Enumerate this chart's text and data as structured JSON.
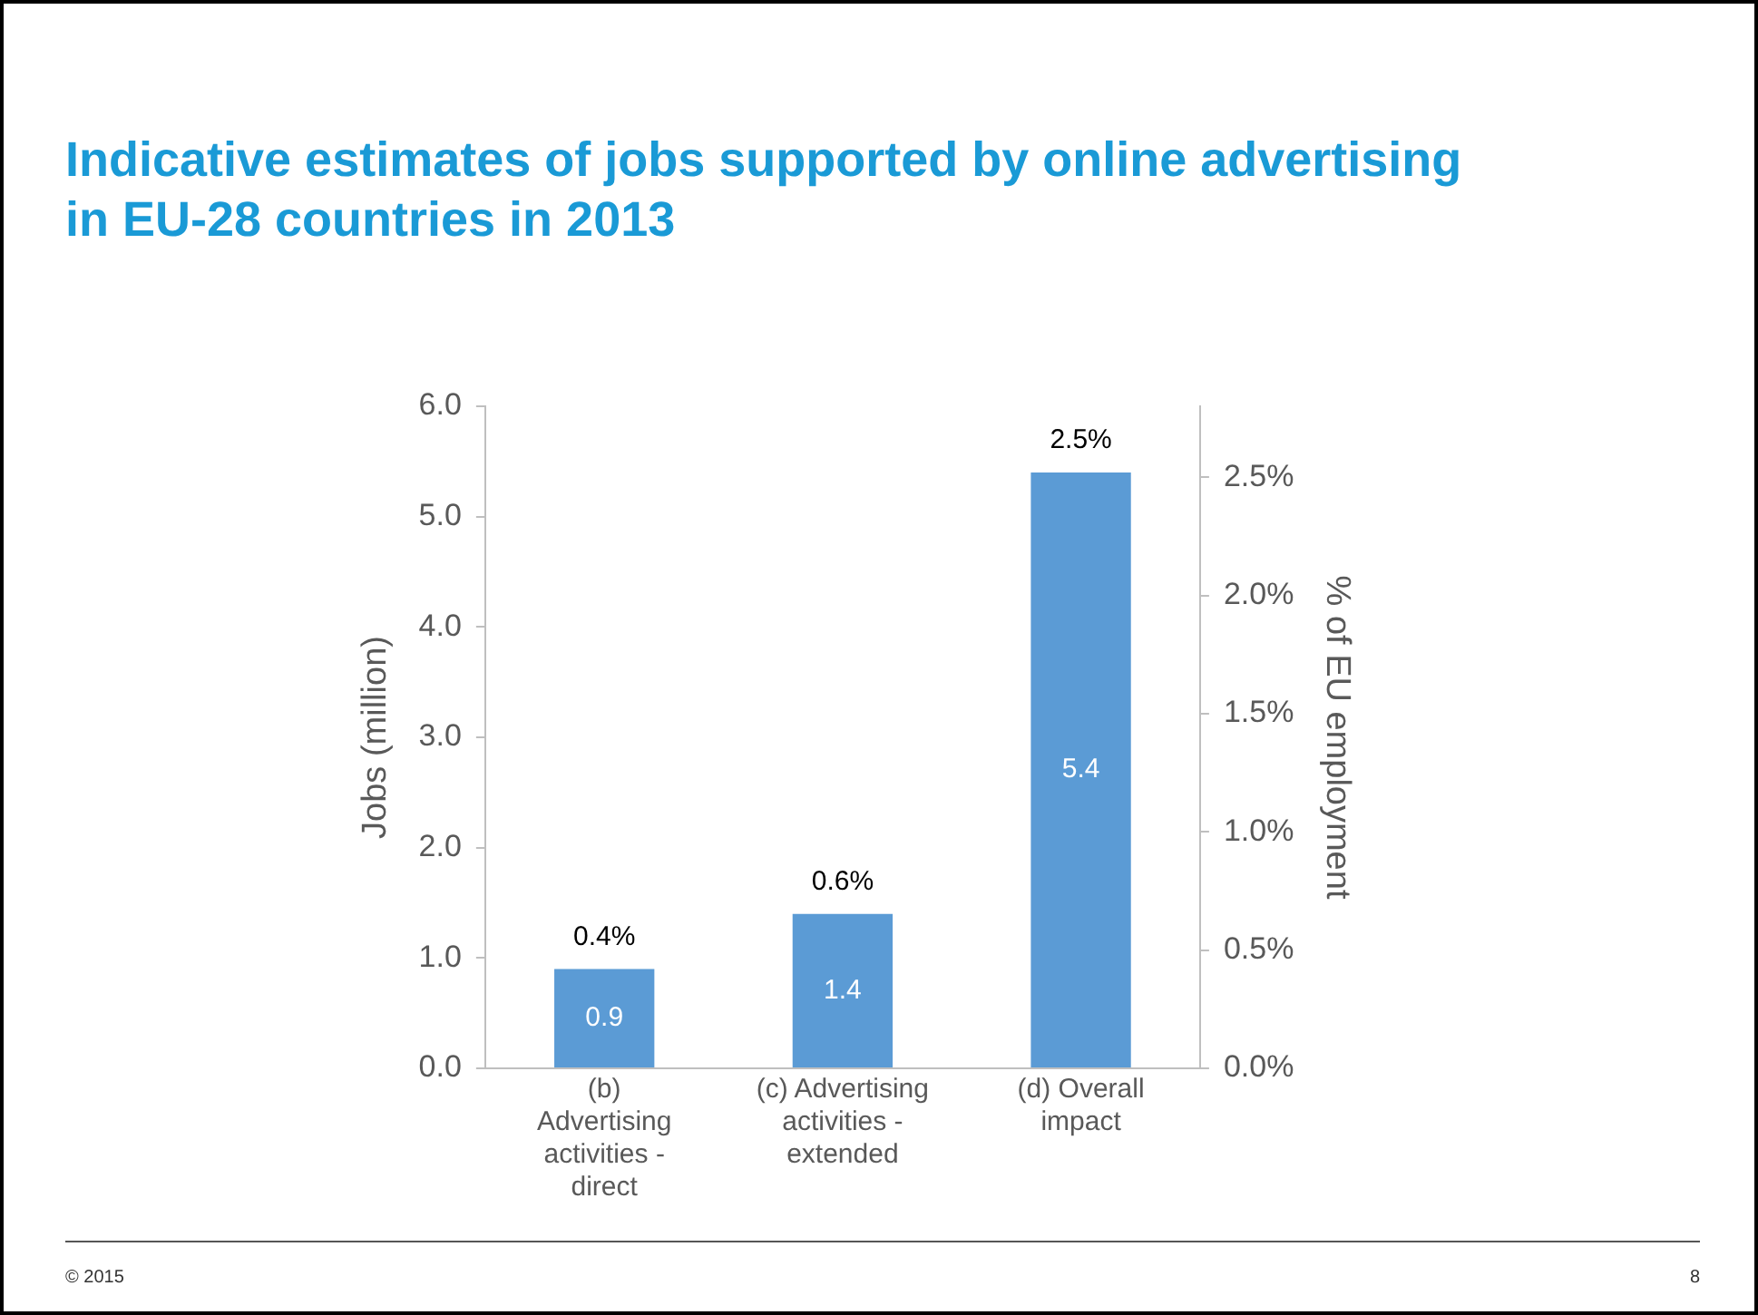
{
  "chart_data": {
    "type": "bar",
    "title": "Indicative estimates of jobs supported by online advertising in EU-28 countries in 2013",
    "categories": [
      "(b) Advertising activities - direct",
      "(c) Advertising activities - extended",
      "(d) Overall impact"
    ],
    "series": [
      {
        "color": "#5b9bd5",
        "values": [
          0.9,
          1.4,
          5.4
        ]
      }
    ],
    "data_labels": true,
    "ylabel": "Jobs (million)",
    "y2label": "% of EU employment",
    "ylim": [
      0,
      6
    ],
    "yticks": [
      {
        "value": 0,
        "label": "0.0"
      },
      {
        "value": 1,
        "label": "1.0"
      },
      {
        "value": 2,
        "label": "2.0"
      },
      {
        "value": 3,
        "label": "3.0"
      },
      {
        "value": 4,
        "label": "4.0"
      },
      {
        "value": 5,
        "label": "5.0"
      },
      {
        "value": 6,
        "label": "6.0"
      }
    ],
    "y2lim": [
      0,
      2.8
    ],
    "y2ticks": [
      {
        "value": 0,
        "label": "0.0%"
      },
      {
        "value": 0.5,
        "label": "0.5%"
      },
      {
        "value": 1,
        "label": "1.0%"
      },
      {
        "value": 1.5,
        "label": "1.5%"
      },
      {
        "value": 2,
        "label": "2.0%"
      },
      {
        "value": 2.5,
        "label": "2.5%"
      }
    ],
    "grid": false,
    "legend": false,
    "annotations": [
      "© 2015",
      "8",
      {
        "text": "0.4%",
        "x": "(b) Advertising activities - direct",
        "y": 0.9
      },
      {
        "text": "0.6%",
        "x": "(c) Advertising activities - extended",
        "y": 1.4
      },
      {
        "text": "2.5%",
        "x": "(d) Overall impact",
        "y": 5.4
      }
    ]
  }
}
